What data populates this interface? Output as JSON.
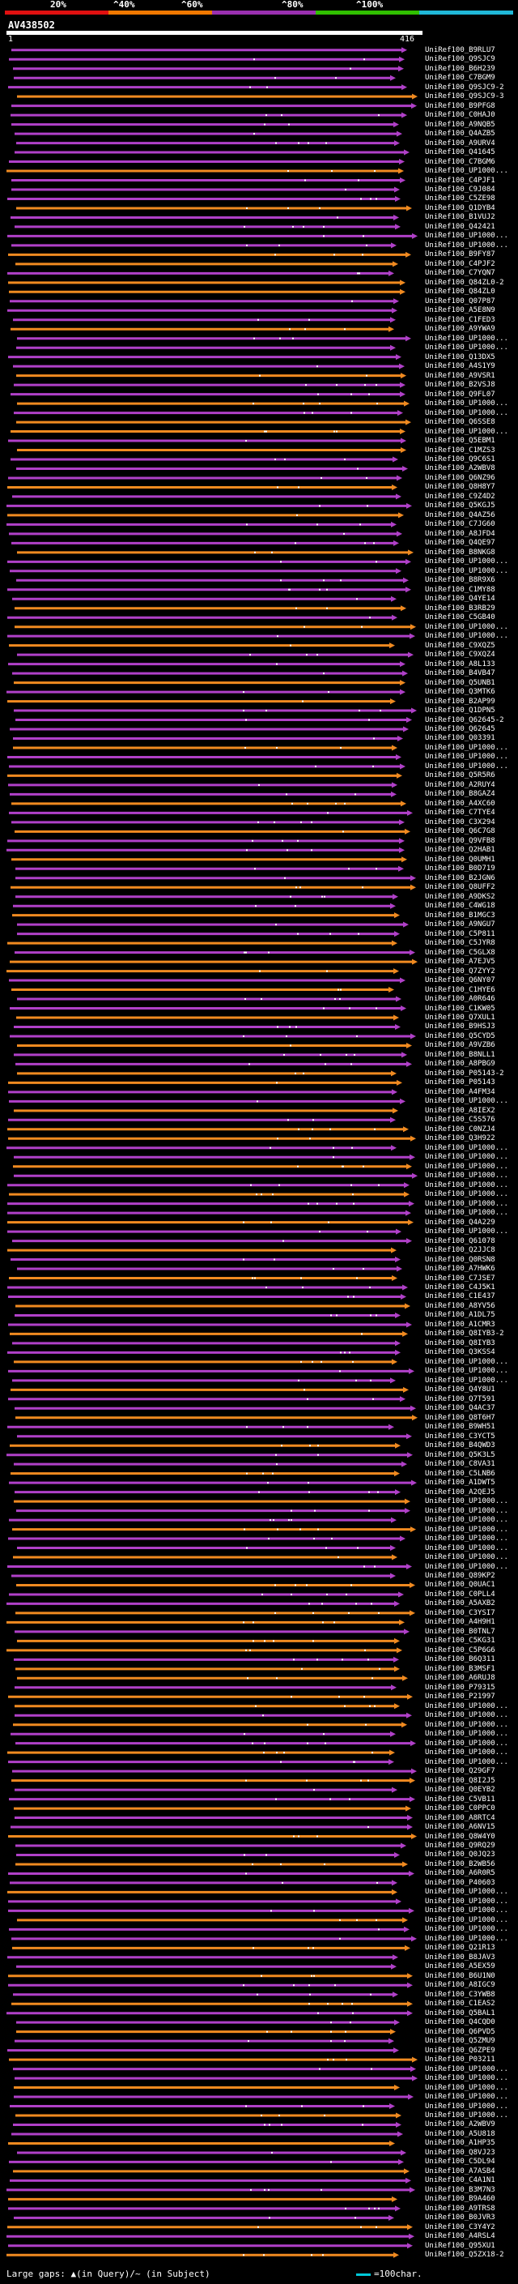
{
  "legend": {
    "labels": [
      "20%",
      "^40%",
      "^60%",
      "^80%",
      "^100%"
    ],
    "colors": [
      "#e01010",
      "#f07800",
      "#9a30b0",
      "#30c000",
      "#20b8d8"
    ]
  },
  "query": {
    "name": "AV438502",
    "length_start": "1",
    "length_end": "416"
  },
  "colors": {
    "purple": "#b040c8",
    "orange": "#f08a20",
    "thin": "#c060d8",
    "gap": "#ffffff"
  },
  "hits": [
    {
      "label": "UniRef100_B9RLU7",
      "color": "purple"
    },
    {
      "label": "UniRef100_Q9SJC9",
      "color": "purple"
    },
    {
      "label": "UniRef100_B6H239",
      "color": "purple"
    },
    {
      "label": "UniRef100_C7BGM9",
      "color": "purple"
    },
    {
      "label": "UniRef100_Q9SJC9-2",
      "color": "purple"
    },
    {
      "label": "UniRef100_Q9SJC9-3",
      "color": "orange"
    },
    {
      "label": "UniRef100_B9PFG8",
      "color": "purple"
    },
    {
      "label": "UniRef100_C0HAJ0",
      "color": "purple"
    },
    {
      "label": "UniRef100_A9NQB5",
      "color": "purple"
    },
    {
      "label": "UniRef100_Q4AZB5",
      "color": "purple"
    },
    {
      "label": "UniRef100_A9URV4",
      "color": "purple"
    },
    {
      "label": "UniRef100_Q41645",
      "color": "purple"
    },
    {
      "label": "UniRef100_C7BGM6",
      "color": "purple"
    },
    {
      "label": "UniRef100_UP1000...",
      "color": "orange"
    },
    {
      "label": "UniRef100_C4PJF1",
      "color": "purple"
    },
    {
      "label": "UniRef100_C9J084",
      "color": "purple"
    },
    {
      "label": "UniRef100_C5ZE98",
      "color": "purple"
    },
    {
      "label": "UniRef100_Q1DYB4",
      "color": "orange"
    },
    {
      "label": "UniRef100_B1VUJ2",
      "color": "purple"
    },
    {
      "label": "UniRef100_Q42421",
      "color": "purple"
    },
    {
      "label": "UniRef100_UP1000...",
      "color": "purple"
    },
    {
      "label": "UniRef100_UP1000...",
      "color": "purple"
    },
    {
      "label": "UniRef100_B9FY87",
      "color": "orange"
    },
    {
      "label": "UniRef100_C4PJF2",
      "color": "orange"
    },
    {
      "label": "UniRef100_C7YQN7",
      "color": "purple"
    },
    {
      "label": "UniRef100_Q84ZL0-2",
      "color": "orange"
    },
    {
      "label": "UniRef100_Q84ZL0",
      "color": "orange"
    },
    {
      "label": "UniRef100_Q07P87",
      "color": "purple"
    },
    {
      "label": "UniRef100_A5E8N9",
      "color": "purple"
    },
    {
      "label": "UniRef100_C1FED3",
      "color": "purple"
    },
    {
      "label": "UniRef100_A9YWA9",
      "color": "orange"
    },
    {
      "label": "UniRef100_UP1000...",
      "color": "purple"
    },
    {
      "label": "UniRef100_UP1000...",
      "color": "purple"
    },
    {
      "label": "UniRef100_Q13DX5",
      "color": "purple"
    },
    {
      "label": "UniRef100_A4S1Y9",
      "color": "purple"
    },
    {
      "label": "UniRef100_A9VSR1",
      "color": "orange"
    },
    {
      "label": "UniRef100_B2VSJ8",
      "color": "purple"
    },
    {
      "label": "UniRef100_Q9FL07",
      "color": "purple"
    },
    {
      "label": "UniRef100_UP1000...",
      "color": "orange"
    },
    {
      "label": "UniRef100_UP1000...",
      "color": "purple"
    },
    {
      "label": "UniRef100_Q6SSE8",
      "color": "orange"
    },
    {
      "label": "UniRef100_UP1000...",
      "color": "orange"
    },
    {
      "label": "UniRef100_Q5EBM1",
      "color": "purple"
    },
    {
      "label": "UniRef100_C1MZS3",
      "color": "orange"
    },
    {
      "label": "UniRef100_Q9C6S1",
      "color": "purple"
    },
    {
      "label": "UniRef100_A2WBV8",
      "color": "purple"
    },
    {
      "label": "UniRef100_Q6NZ96",
      "color": "purple"
    },
    {
      "label": "UniRef100_Q8H8Y7",
      "color": "orange"
    },
    {
      "label": "UniRef100_C9Z4D2",
      "color": "purple"
    },
    {
      "label": "UniRef100_Q5KGJ5",
      "color": "purple"
    },
    {
      "label": "UniRef100_Q4AZ56",
      "color": "orange"
    },
    {
      "label": "UniRef100_C7JG60",
      "color": "purple"
    },
    {
      "label": "UniRef100_A8JFD4",
      "color": "purple"
    },
    {
      "label": "UniRef100_Q4QE97",
      "color": "purple"
    },
    {
      "label": "UniRef100_B8NKG8",
      "color": "orange"
    },
    {
      "label": "UniRef100_UP1000...",
      "color": "purple"
    },
    {
      "label": "UniRef100_UP1000...",
      "color": "purple"
    },
    {
      "label": "UniRef100_B8R9X6",
      "color": "purple"
    },
    {
      "label": "UniRef100_C1MY88",
      "color": "purple"
    },
    {
      "label": "UniRef100_Q4YE14",
      "color": "purple"
    },
    {
      "label": "UniRef100_B3RB29",
      "color": "orange"
    },
    {
      "label": "UniRef100_C5GB40",
      "color": "purple"
    },
    {
      "label": "UniRef100_UP1000...",
      "color": "orange"
    },
    {
      "label": "UniRef100_UP1000...",
      "color": "purple"
    },
    {
      "label": "UniRef100_C9XQZ5",
      "color": "orange"
    },
    {
      "label": "UniRef100_C9XQZ4",
      "color": "purple"
    },
    {
      "label": "UniRef100_A8L133",
      "color": "purple"
    },
    {
      "label": "UniRef100_B4VB47",
      "color": "purple"
    },
    {
      "label": "UniRef100_Q5UNB1",
      "color": "orange"
    },
    {
      "label": "UniRef100_Q3MTK6",
      "color": "purple"
    },
    {
      "label": "UniRef100_B2AP99",
      "color": "orange"
    },
    {
      "label": "UniRef100_Q1DPN5",
      "color": "purple"
    },
    {
      "label": "UniRef100_Q62645-2",
      "color": "purple"
    },
    {
      "label": "UniRef100_Q62645",
      "color": "purple"
    },
    {
      "label": "UniRef100_Q03391",
      "color": "purple"
    },
    {
      "label": "UniRef100_UP1000...",
      "color": "orange"
    },
    {
      "label": "UniRef100_UP1000...",
      "color": "purple"
    },
    {
      "label": "UniRef100_UP1000...",
      "color": "purple"
    },
    {
      "label": "UniRef100_Q5R5R6",
      "color": "orange"
    },
    {
      "label": "UniRef100_A2RUY4",
      "color": "purple"
    },
    {
      "label": "UniRef100_B8GAZ4",
      "color": "purple"
    },
    {
      "label": "UniRef100_A4XC60",
      "color": "orange"
    },
    {
      "label": "UniRef100_C7TYE4",
      "color": "purple"
    },
    {
      "label": "UniRef100_C3X294",
      "color": "purple"
    },
    {
      "label": "UniRef100_Q6C7G8",
      "color": "orange"
    },
    {
      "label": "UniRef100_Q9VFB8",
      "color": "purple"
    },
    {
      "label": "UniRef100_Q2HAB1",
      "color": "purple"
    },
    {
      "label": "UniRef100_Q0UMH1",
      "color": "orange"
    },
    {
      "label": "UniRef100_B0D719",
      "color": "purple"
    },
    {
      "label": "UniRef100_B2JGN6",
      "color": "purple"
    },
    {
      "label": "UniRef100_Q8UFF2",
      "color": "orange"
    },
    {
      "label": "UniRef100_A9DKS2",
      "color": "purple"
    },
    {
      "label": "UniRef100_C4WG18",
      "color": "purple"
    },
    {
      "label": "UniRef100_B1MGC3",
      "color": "orange"
    },
    {
      "label": "UniRef100_A9NGU7",
      "color": "purple"
    },
    {
      "label": "UniRef100_C5P811",
      "color": "purple"
    },
    {
      "label": "UniRef100_C5JYR8",
      "color": "orange"
    },
    {
      "label": "UniRef100_C5GLX8",
      "color": "purple"
    },
    {
      "label": "UniRef100_A7EJV5",
      "color": "orange"
    },
    {
      "label": "UniRef100_Q7ZYY2",
      "color": "orange"
    },
    {
      "label": "UniRef100_Q6NY07",
      "color": "purple"
    },
    {
      "label": "UniRef100_C1HYE6",
      "color": "orange"
    },
    {
      "label": "UniRef100_A0R646",
      "color": "purple"
    },
    {
      "label": "UniRef100_C1KW05",
      "color": "purple"
    },
    {
      "label": "UniRef100_Q7XUL1",
      "color": "orange"
    },
    {
      "label": "UniRef100_B9HSJ3",
      "color": "purple"
    },
    {
      "label": "UniRef100_Q5CYD5",
      "color": "purple"
    },
    {
      "label": "UniRef100_A9VZB6",
      "color": "orange"
    },
    {
      "label": "UniRef100_B8NLL1",
      "color": "purple"
    },
    {
      "label": "UniRef100_A8PBG9",
      "color": "purple"
    },
    {
      "label": "UniRef100_P05143-2",
      "color": "orange"
    },
    {
      "label": "UniRef100_P05143",
      "color": "orange"
    },
    {
      "label": "UniRef100_A4FM34",
      "color": "purple"
    },
    {
      "label": "UniRef100_UP1000...",
      "color": "purple"
    },
    {
      "label": "UniRef100_A8IEX2",
      "color": "orange"
    },
    {
      "label": "UniRef100_C5S576",
      "color": "purple"
    },
    {
      "label": "UniRef100_C0NZJ4",
      "color": "orange"
    },
    {
      "label": "UniRef100_Q3H922",
      "color": "orange"
    },
    {
      "label": "UniRef100_UP1000...",
      "color": "purple"
    },
    {
      "label": "UniRef100_UP1000...",
      "color": "purple"
    },
    {
      "label": "UniRef100_UP1000...",
      "color": "orange"
    },
    {
      "label": "UniRef100_UP1000...",
      "color": "purple"
    },
    {
      "label": "UniRef100_UP1000...",
      "color": "purple"
    },
    {
      "label": "UniRef100_UP1000...",
      "color": "orange"
    },
    {
      "label": "UniRef100_UP1000...",
      "color": "purple"
    },
    {
      "label": "UniRef100_UP1000...",
      "color": "purple"
    },
    {
      "label": "UniRef100_Q4A229",
      "color": "orange"
    },
    {
      "label": "UniRef100_UP1000...",
      "color": "purple"
    },
    {
      "label": "UniRef100_Q61078",
      "color": "purple"
    },
    {
      "label": "UniRef100_Q2JJC8",
      "color": "orange"
    },
    {
      "label": "UniRef100_Q0RSN8",
      "color": "purple"
    },
    {
      "label": "UniRef100_A7HWK6",
      "color": "purple"
    },
    {
      "label": "UniRef100_C7JSE7",
      "color": "orange"
    },
    {
      "label": "UniRef100_C4J5K1",
      "color": "purple"
    },
    {
      "label": "UniRef100_C1E437",
      "color": "purple"
    },
    {
      "label": "UniRef100_A8YV56",
      "color": "orange"
    },
    {
      "label": "UniRef100_A1DL75",
      "color": "purple"
    },
    {
      "label": "UniRef100_A1CMR3",
      "color": "purple"
    },
    {
      "label": "UniRef100_Q8IYB3-2",
      "color": "orange"
    },
    {
      "label": "UniRef100_Q8IYB3",
      "color": "purple"
    },
    {
      "label": "UniRef100_Q3KSS4",
      "color": "purple"
    },
    {
      "label": "UniRef100_UP1000...",
      "color": "orange"
    },
    {
      "label": "UniRef100_UP1000...",
      "color": "purple"
    },
    {
      "label": "UniRef100_UP1000...",
      "color": "purple"
    },
    {
      "label": "UniRef100_Q4Y8U1",
      "color": "orange"
    },
    {
      "label": "UniRef100_Q7T591",
      "color": "purple"
    },
    {
      "label": "UniRef100_Q4AC37",
      "color": "purple"
    },
    {
      "label": "UniRef100_Q8T6H7",
      "color": "orange"
    },
    {
      "label": "UniRef100_B9WH51",
      "color": "purple"
    },
    {
      "label": "UniRef100_C3YCT5",
      "color": "purple"
    },
    {
      "label": "UniRef100_B4QWD3",
      "color": "orange"
    },
    {
      "label": "UniRef100_Q5K3L5",
      "color": "purple"
    },
    {
      "label": "UniRef100_C8VA31",
      "color": "purple"
    },
    {
      "label": "UniRef100_C5LNB6",
      "color": "orange"
    },
    {
      "label": "UniRef100_A1DWT5",
      "color": "purple"
    },
    {
      "label": "UniRef100_A2QEJ5",
      "color": "purple"
    },
    {
      "label": "UniRef100_UP1000...",
      "color": "orange"
    },
    {
      "label": "UniRef100_UP1000...",
      "color": "purple"
    },
    {
      "label": "UniRef100_UP1000...",
      "color": "purple"
    },
    {
      "label": "UniRef100_UP1000...",
      "color": "orange"
    },
    {
      "label": "UniRef100_UP1000...",
      "color": "purple"
    },
    {
      "label": "UniRef100_UP1000...",
      "color": "purple"
    },
    {
      "label": "UniRef100_UP1000...",
      "color": "orange"
    },
    {
      "label": "UniRef100_UP1000...",
      "color": "purple"
    },
    {
      "label": "UniRef100_Q89KP2",
      "color": "purple"
    },
    {
      "label": "UniRef100_Q0UAC1",
      "color": "orange"
    },
    {
      "label": "UniRef100_C0PLL4",
      "color": "purple"
    },
    {
      "label": "UniRef100_A5AXB2",
      "color": "purple"
    },
    {
      "label": "UniRef100_C3YSI7",
      "color": "orange"
    },
    {
      "label": "UniRef100_A4H9H1",
      "color": "orange"
    },
    {
      "label": "UniRef100_B0TNL7",
      "color": "purple"
    },
    {
      "label": "UniRef100_C5KG31",
      "color": "orange"
    },
    {
      "label": "UniRef100_C5P6G6",
      "color": "orange"
    },
    {
      "label": "UniRef100_B6Q311",
      "color": "purple"
    },
    {
      "label": "UniRef100_B3MSF1",
      "color": "orange"
    },
    {
      "label": "UniRef100_A6RUJ8",
      "color": "orange"
    },
    {
      "label": "UniRef100_P79315",
      "color": "purple"
    },
    {
      "label": "UniRef100_P21997",
      "color": "orange"
    },
    {
      "label": "UniRef100_UP1000...",
      "color": "orange"
    },
    {
      "label": "UniRef100_UP1000...",
      "color": "purple"
    },
    {
      "label": "UniRef100_UP1000...",
      "color": "orange"
    },
    {
      "label": "UniRef100_UP1000...",
      "color": "purple"
    },
    {
      "label": "UniRef100_UP1000...",
      "color": "purple"
    },
    {
      "label": "UniRef100_UP1000...",
      "color": "orange"
    },
    {
      "label": "UniRef100_UP1000...",
      "color": "purple"
    },
    {
      "label": "UniRef100_Q29GF7",
      "color": "purple"
    },
    {
      "label": "UniRef100_Q8I2J5",
      "color": "orange"
    },
    {
      "label": "UniRef100_Q0EYB2",
      "color": "purple"
    },
    {
      "label": "UniRef100_C5VB11",
      "color": "purple"
    },
    {
      "label": "UniRef100_C0PPC0",
      "color": "orange"
    },
    {
      "label": "UniRef100_A8RTC4",
      "color": "purple"
    },
    {
      "label": "UniRef100_A6NV15",
      "color": "purple"
    },
    {
      "label": "UniRef100_Q8W4Y0",
      "color": "orange"
    },
    {
      "label": "UniRef100_Q9RQ29",
      "color": "purple"
    },
    {
      "label": "UniRef100_Q0JQ23",
      "color": "purple"
    },
    {
      "label": "UniRef100_B2WB56",
      "color": "orange"
    },
    {
      "label": "UniRef100_A6R0R5",
      "color": "purple"
    },
    {
      "label": "UniRef100_P40603",
      "color": "purple"
    },
    {
      "label": "UniRef100_UP1000...",
      "color": "orange"
    },
    {
      "label": "UniRef100_UP1000...",
      "color": "purple"
    },
    {
      "label": "UniRef100_UP1000...",
      "color": "purple"
    },
    {
      "label": "UniRef100_UP1000...",
      "color": "orange"
    },
    {
      "label": "UniRef100_UP1000...",
      "color": "purple"
    },
    {
      "label": "UniRef100_UP1000...",
      "color": "purple"
    },
    {
      "label": "UniRef100_Q21R13",
      "color": "orange"
    },
    {
      "label": "UniRef100_B8JAV3",
      "color": "purple"
    },
    {
      "label": "UniRef100_A5EX59",
      "color": "purple"
    },
    {
      "label": "UniRef100_B6U1N0",
      "color": "orange"
    },
    {
      "label": "UniRef100_A8IGC9",
      "color": "purple"
    },
    {
      "label": "UniRef100_C3YWB8",
      "color": "purple"
    },
    {
      "label": "UniRef100_C1EAS2",
      "color": "orange"
    },
    {
      "label": "UniRef100_Q5BAL1",
      "color": "purple"
    },
    {
      "label": "UniRef100_Q4CQD0",
      "color": "purple"
    },
    {
      "label": "UniRef100_Q6PVD5",
      "color": "orange"
    },
    {
      "label": "UniRef100_Q5ZMU9",
      "color": "purple"
    },
    {
      "label": "UniRef100_Q6ZPE9",
      "color": "purple"
    },
    {
      "label": "UniRef100_P03211",
      "color": "orange"
    },
    {
      "label": "UniRef100_UP1000...",
      "color": "purple"
    },
    {
      "label": "UniRef100_UP1000...",
      "color": "purple"
    },
    {
      "label": "UniRef100_UP1000...",
      "color": "orange"
    },
    {
      "label": "UniRef100_UP1000...",
      "color": "purple"
    },
    {
      "label": "UniRef100_UP1000...",
      "color": "purple"
    },
    {
      "label": "UniRef100_UP1000...",
      "color": "orange"
    },
    {
      "label": "UniRef100_A2WBV9",
      "color": "purple"
    },
    {
      "label": "UniRef100_A5U818",
      "color": "purple"
    },
    {
      "label": "UniRef100_A1HP35",
      "color": "orange"
    },
    {
      "label": "UniRef100_Q8VJ23",
      "color": "purple"
    },
    {
      "label": "UniRef100_C5DL94",
      "color": "purple"
    },
    {
      "label": "UniRef100_A7ASB4",
      "color": "orange"
    },
    {
      "label": "UniRef100_C4A1N1",
      "color": "purple"
    },
    {
      "label": "UniRef100_B3M7N3",
      "color": "purple"
    },
    {
      "label": "UniRef100_B9A460",
      "color": "orange"
    },
    {
      "label": "UniRef100_A9TRS8",
      "color": "purple"
    },
    {
      "label": "UniRef100_B0JVR3",
      "color": "purple"
    },
    {
      "label": "UniRef100_C3Y4Y2",
      "color": "orange"
    },
    {
      "label": "UniRef100_A4RSL4",
      "color": "purple"
    },
    {
      "label": "UniRef100_Q95XU1",
      "color": "purple"
    },
    {
      "label": "UniRef100_Q5ZX18-2",
      "color": "orange"
    }
  ],
  "footer": {
    "text": "Large gaps: ▲(in Query)/~ (in Subject)",
    "scale_label": "=100char."
  }
}
